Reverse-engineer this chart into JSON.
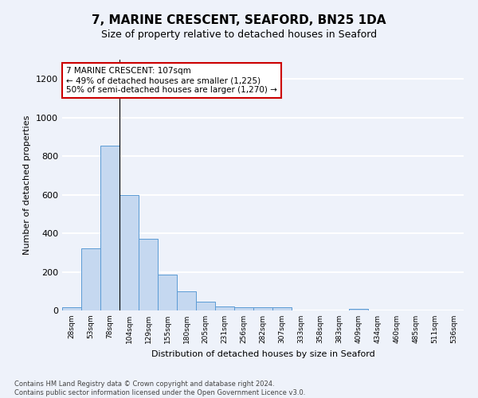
{
  "title": "7, MARINE CRESCENT, SEAFORD, BN25 1DA",
  "subtitle": "Size of property relative to detached houses in Seaford",
  "xlabel": "Distribution of detached houses by size in Seaford",
  "ylabel": "Number of detached properties",
  "categories": [
    "28sqm",
    "53sqm",
    "78sqm",
    "104sqm",
    "129sqm",
    "155sqm",
    "180sqm",
    "205sqm",
    "231sqm",
    "256sqm",
    "282sqm",
    "307sqm",
    "333sqm",
    "358sqm",
    "383sqm",
    "409sqm",
    "434sqm",
    "460sqm",
    "485sqm",
    "511sqm",
    "536sqm"
  ],
  "values": [
    15,
    320,
    855,
    600,
    370,
    185,
    100,
    45,
    20,
    15,
    15,
    15,
    0,
    0,
    0,
    10,
    0,
    0,
    0,
    0,
    0
  ],
  "bar_color": "#c5d8f0",
  "bar_edge_color": "#5b9bd5",
  "annotation_text_line1": "7 MARINE CRESCENT: 107sqm",
  "annotation_text_line2": "← 49% of detached houses are smaller (1,225)",
  "annotation_text_line3": "50% of semi-detached houses are larger (1,270) →",
  "annotation_box_color": "#ffffff",
  "annotation_box_edge_color": "#cc0000",
  "vline_x_index": 3,
  "ylim": [
    0,
    1300
  ],
  "yticks": [
    0,
    200,
    400,
    600,
    800,
    1000,
    1200
  ],
  "background_color": "#eef2fa",
  "grid_color": "#ffffff",
  "footer_line1": "Contains HM Land Registry data © Crown copyright and database right 2024.",
  "footer_line2": "Contains public sector information licensed under the Open Government Licence v3.0."
}
